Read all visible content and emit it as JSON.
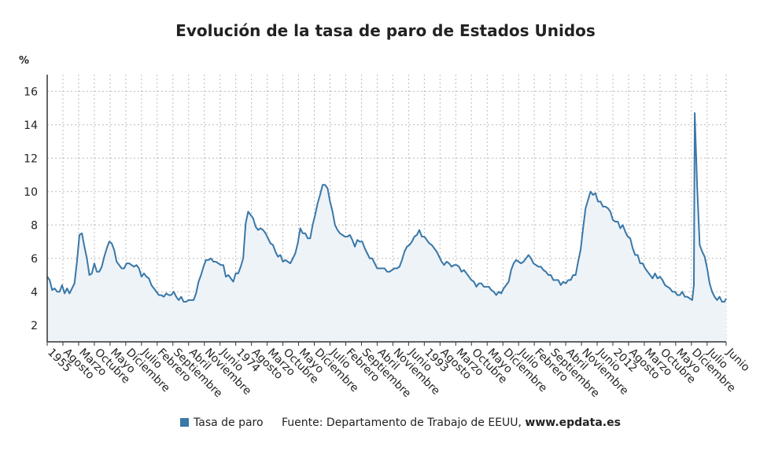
{
  "chart_data": {
    "type": "line",
    "title": "Evolución de la tasa de paro de Estados Unidos",
    "y_unit": "%",
    "source": "Fuente: Departamento de Trabajo de EEUU,",
    "source_link": "www.epdata.es",
    "grid": true,
    "area_color": "#eef3f8",
    "x": [
      1955,
      1955.25,
      1955.5,
      1955.75,
      1956,
      1956.25,
      1956.5,
      1956.75,
      1957,
      1957.25,
      1957.5,
      1957.75,
      1958,
      1958.25,
      1958.5,
      1958.75,
      1959,
      1959.25,
      1959.5,
      1959.75,
      1960,
      1960.25,
      1960.5,
      1960.75,
      1961,
      1961.25,
      1961.5,
      1961.75,
      1962,
      1962.25,
      1962.5,
      1962.75,
      1963,
      1963.25,
      1963.5,
      1963.75,
      1964,
      1964.25,
      1964.5,
      1964.75,
      1965,
      1965.25,
      1965.5,
      1965.75,
      1966,
      1966.25,
      1966.5,
      1966.75,
      1967,
      1967.25,
      1967.5,
      1967.75,
      1968,
      1968.25,
      1968.5,
      1968.75,
      1969,
      1969.25,
      1969.5,
      1969.75,
      1970,
      1970.25,
      1970.5,
      1970.75,
      1971,
      1971.25,
      1971.5,
      1971.75,
      1972,
      1972.25,
      1972.5,
      1972.75,
      1973,
      1973.25,
      1973.5,
      1973.75,
      1974,
      1974.25,
      1974.5,
      1974.75,
      1975,
      1975.25,
      1975.5,
      1975.75,
      1976,
      1976.25,
      1976.5,
      1976.75,
      1977,
      1977.25,
      1977.5,
      1977.75,
      1978,
      1978.25,
      1978.5,
      1978.75,
      1979,
      1979.25,
      1979.5,
      1979.75,
      1980,
      1980.25,
      1980.5,
      1980.75,
      1981,
      1981.25,
      1981.5,
      1981.75,
      1982,
      1982.25,
      1982.5,
      1982.75,
      1983,
      1983.25,
      1983.5,
      1983.75,
      1984,
      1984.25,
      1984.5,
      1984.75,
      1985,
      1985.25,
      1985.5,
      1985.75,
      1986,
      1986.25,
      1986.5,
      1986.75,
      1987,
      1987.25,
      1987.5,
      1987.75,
      1988,
      1988.25,
      1988.5,
      1988.75,
      1989,
      1989.25,
      1989.5,
      1989.75,
      1990,
      1990.25,
      1990.5,
      1990.75,
      1991,
      1991.25,
      1991.5,
      1991.75,
      1992,
      1992.25,
      1992.5,
      1992.75,
      1993,
      1993.25,
      1993.5,
      1993.75,
      1994,
      1994.25,
      1994.5,
      1994.75,
      1995,
      1995.25,
      1995.5,
      1995.75,
      1996,
      1996.25,
      1996.5,
      1996.75,
      1997,
      1997.25,
      1997.5,
      1997.75,
      1998,
      1998.25,
      1998.5,
      1998.75,
      1999,
      1999.25,
      1999.5,
      1999.75,
      2000,
      2000.25,
      2000.5,
      2000.75,
      2001,
      2001.25,
      2001.5,
      2001.75,
      2002,
      2002.25,
      2002.5,
      2002.75,
      2003,
      2003.25,
      2003.5,
      2003.75,
      2004,
      2004.25,
      2004.5,
      2004.75,
      2005,
      2005.25,
      2005.5,
      2005.75,
      2006,
      2006.25,
      2006.5,
      2006.75,
      2007,
      2007.25,
      2007.5,
      2007.75,
      2008,
      2008.25,
      2008.5,
      2008.75,
      2009,
      2009.25,
      2009.5,
      2009.75,
      2010,
      2010.25,
      2010.5,
      2010.75,
      2011,
      2011.25,
      2011.5,
      2011.75,
      2012,
      2012.25,
      2012.5,
      2012.75,
      2013,
      2013.25,
      2013.5,
      2013.75,
      2014,
      2014.25,
      2014.5,
      2014.75,
      2015,
      2015.25,
      2015.5,
      2015.75,
      2016,
      2016.25,
      2016.5,
      2016.75,
      2017,
      2017.25,
      2017.5,
      2017.75,
      2018,
      2018.25,
      2018.5,
      2018.75,
      2019,
      2019.25,
      2019.5,
      2019.75,
      2020,
      2020.1667,
      2020.25,
      2020.5,
      2020.75,
      2021,
      2021.25,
      2021.5,
      2021.75,
      2022,
      2022.25,
      2022.5,
      2022.75,
      2023,
      2023.25,
      2023.4167
    ],
    "series": [
      {
        "name": "Tasa de paro",
        "color": "#3a78a8",
        "values": [
          4.9,
          4.7,
          4.1,
          4.2,
          4.0,
          4.0,
          4.4,
          3.9,
          4.2,
          3.9,
          4.2,
          4.5,
          5.8,
          7.4,
          7.5,
          6.7,
          6.0,
          5.0,
          5.1,
          5.7,
          5.2,
          5.2,
          5.5,
          6.1,
          6.6,
          7.0,
          6.9,
          6.5,
          5.8,
          5.6,
          5.4,
          5.4,
          5.7,
          5.7,
          5.6,
          5.5,
          5.6,
          5.4,
          4.9,
          5.1,
          4.9,
          4.8,
          4.4,
          4.2,
          4.0,
          3.8,
          3.8,
          3.7,
          3.9,
          3.8,
          3.8,
          4.0,
          3.7,
          3.5,
          3.7,
          3.4,
          3.4,
          3.5,
          3.5,
          3.5,
          3.9,
          4.6,
          5.0,
          5.5,
          5.9,
          5.9,
          6.0,
          5.8,
          5.8,
          5.7,
          5.6,
          5.6,
          4.9,
          5.0,
          4.8,
          4.6,
          5.1,
          5.1,
          5.5,
          6.0,
          8.1,
          8.8,
          8.6,
          8.4,
          7.9,
          7.7,
          7.8,
          7.7,
          7.5,
          7.2,
          6.9,
          6.8,
          6.4,
          6.1,
          6.2,
          5.8,
          5.9,
          5.8,
          5.7,
          6.0,
          6.3,
          6.9,
          7.8,
          7.5,
          7.5,
          7.2,
          7.2,
          8.0,
          8.6,
          9.3,
          9.8,
          10.4,
          10.4,
          10.2,
          9.4,
          8.8,
          8.0,
          7.7,
          7.5,
          7.4,
          7.3,
          7.3,
          7.4,
          7.1,
          6.7,
          7.1,
          7.0,
          7.0,
          6.6,
          6.3,
          6.0,
          6.0,
          5.7,
          5.4,
          5.4,
          5.4,
          5.4,
          5.2,
          5.2,
          5.3,
          5.4,
          5.4,
          5.5,
          5.9,
          6.4,
          6.7,
          6.8,
          7.0,
          7.3,
          7.4,
          7.7,
          7.3,
          7.3,
          7.1,
          6.9,
          6.8,
          6.6,
          6.4,
          6.1,
          5.8,
          5.6,
          5.8,
          5.7,
          5.5,
          5.6,
          5.6,
          5.5,
          5.2,
          5.3,
          5.1,
          4.9,
          4.7,
          4.6,
          4.3,
          4.5,
          4.5,
          4.3,
          4.3,
          4.3,
          4.1,
          4.0,
          3.8,
          4.0,
          3.9,
          4.2,
          4.4,
          4.6,
          5.3,
          5.7,
          5.9,
          5.8,
          5.7,
          5.8,
          6.0,
          6.2,
          6.0,
          5.7,
          5.6,
          5.5,
          5.5,
          5.3,
          5.2,
          5.0,
          5.0,
          4.7,
          4.7,
          4.7,
          4.4,
          4.6,
          4.5,
          4.7,
          4.7,
          5.0,
          5.0,
          5.8,
          6.5,
          7.8,
          9.0,
          9.5,
          10.0,
          9.8,
          9.9,
          9.4,
          9.4,
          9.1,
          9.1,
          9.0,
          8.8,
          8.3,
          8.2,
          8.2,
          7.8,
          8.0,
          7.6,
          7.3,
          7.2,
          6.6,
          6.2,
          6.2,
          5.7,
          5.7,
          5.4,
          5.2,
          5.0,
          4.8,
          5.1,
          4.8,
          4.9,
          4.7,
          4.4,
          4.3,
          4.2,
          4.0,
          4.0,
          3.8,
          3.8,
          4.0,
          3.7,
          3.7,
          3.6,
          3.5,
          4.4,
          14.7,
          10.2,
          6.8,
          6.4,
          6.1,
          5.4,
          4.5,
          4.0,
          3.7,
          3.5,
          3.7,
          3.4,
          3.4,
          3.6
        ]
      }
    ],
    "xlim": [
      1955,
      2023.4167
    ],
    "xticks": [
      {
        "value": 1955,
        "label": "1955"
      },
      {
        "value": 1956.5833,
        "label": "Agosto"
      },
      {
        "value": 1958.1667,
        "label": "Marzo"
      },
      {
        "value": 1959.75,
        "label": "Octubre"
      },
      {
        "value": 1961.3333,
        "label": "Mayo"
      },
      {
        "value": 1962.9167,
        "label": "Diciembre"
      },
      {
        "value": 1964.5,
        "label": "Julio"
      },
      {
        "value": 1966.0833,
        "label": "Febrero"
      },
      {
        "value": 1967.6667,
        "label": "Septiembre"
      },
      {
        "value": 1969.25,
        "label": "Abril"
      },
      {
        "value": 1970.8333,
        "label": "Noviembre"
      },
      {
        "value": 1972.4167,
        "label": "Junio"
      },
      {
        "value": 1974,
        "label": "1974"
      },
      {
        "value": 1975.5833,
        "label": "Agosto"
      },
      {
        "value": 1977.1667,
        "label": "Marzo"
      },
      {
        "value": 1978.75,
        "label": "Octubre"
      },
      {
        "value": 1980.3333,
        "label": "Mayo"
      },
      {
        "value": 1981.9167,
        "label": "Diciembre"
      },
      {
        "value": 1983.5,
        "label": "Julio"
      },
      {
        "value": 1985.0833,
        "label": "Febrero"
      },
      {
        "value": 1986.6667,
        "label": "Septiembre"
      },
      {
        "value": 1988.25,
        "label": "Abril"
      },
      {
        "value": 1989.8333,
        "label": "Noviembre"
      },
      {
        "value": 1991.4167,
        "label": "Junio"
      },
      {
        "value": 1993,
        "label": "1993"
      },
      {
        "value": 1994.5833,
        "label": "Agosto"
      },
      {
        "value": 1996.1667,
        "label": "Marzo"
      },
      {
        "value": 1997.75,
        "label": "Octubre"
      },
      {
        "value": 1999.3333,
        "label": "Mayo"
      },
      {
        "value": 2000.9167,
        "label": "Diciembre"
      },
      {
        "value": 2002.5,
        "label": "Julio"
      },
      {
        "value": 2004.0833,
        "label": "Febrero"
      },
      {
        "value": 2005.6667,
        "label": "Septiembre"
      },
      {
        "value": 2007.25,
        "label": "Abril"
      },
      {
        "value": 2008.8333,
        "label": "Noviembre"
      },
      {
        "value": 2010.4167,
        "label": "Junio"
      },
      {
        "value": 2012,
        "label": "2012"
      },
      {
        "value": 2013.5833,
        "label": "Agosto"
      },
      {
        "value": 2015.1667,
        "label": "Marzo"
      },
      {
        "value": 2016.75,
        "label": "Octubre"
      },
      {
        "value": 2018.3333,
        "label": "Mayo"
      },
      {
        "value": 2019.9167,
        "label": "Diciembre"
      },
      {
        "value": 2021.5,
        "label": "Julio"
      },
      {
        "value": 2023.4167,
        "label": "Junio"
      }
    ],
    "ylim": [
      1,
      17
    ],
    "yticks": [
      2,
      4,
      6,
      8,
      10,
      12,
      14,
      16
    ]
  }
}
